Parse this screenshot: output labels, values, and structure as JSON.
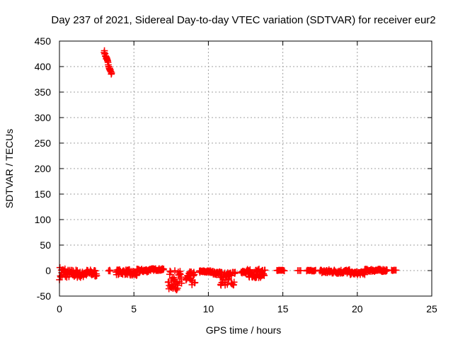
{
  "chart_data": {
    "type": "scatter",
    "title": "Day 237 of 2021, Sidereal Day-to-day VTEC variation (SDTVAR) for receiver eur2",
    "xlabel": "GPS time / hours",
    "ylabel": "SDTVAR / TECUs",
    "xlim": [
      0,
      25
    ],
    "ylim": [
      -50,
      450
    ],
    "xticks": [
      0,
      5,
      10,
      15,
      20,
      25
    ],
    "yticks": [
      -50,
      0,
      50,
      100,
      150,
      200,
      250,
      300,
      350,
      400,
      450
    ],
    "grid": true,
    "marker": "plus",
    "color": "#ff0000",
    "segments": [
      {
        "x_start": 0.0,
        "x_end": 0.4,
        "y": [
          -18,
          8
        ],
        "step": 0.03
      },
      {
        "x_start": 0.4,
        "x_end": 1.2,
        "y": [
          -14,
          2
        ],
        "step": 0.03
      },
      {
        "x_start": 1.2,
        "x_end": 1.6,
        "y": [
          -14,
          -2
        ],
        "step": 0.03
      },
      {
        "x_start": 1.6,
        "x_end": 2.5,
        "y": [
          -12,
          2
        ],
        "step": 0.03
      },
      {
        "x_start": 3.0,
        "x_end": 3.5,
        "y": [
          430,
          385
        ],
        "step": 0.02
      },
      {
        "x_start": 3.3,
        "x_end": 3.4,
        "y": [
          -1,
          1
        ],
        "step": 0.03
      },
      {
        "x_start": 3.8,
        "x_end": 4.7,
        "y": [
          -8,
          2
        ],
        "step": 0.03
      },
      {
        "x_start": 4.7,
        "x_end": 5.2,
        "y": [
          -12,
          0
        ],
        "step": 0.03
      },
      {
        "x_start": 5.2,
        "x_end": 6.0,
        "y": [
          -3,
          3
        ],
        "step": 0.03
      },
      {
        "x_start": 6.0,
        "x_end": 7.0,
        "y": [
          0,
          4
        ],
        "step": 0.03
      },
      {
        "x_start": 7.3,
        "x_end": 8.2,
        "y": [
          -38,
          0
        ],
        "step": 0.025
      },
      {
        "x_start": 8.5,
        "x_end": 9.1,
        "y": [
          -30,
          -2
        ],
        "step": 0.025
      },
      {
        "x_start": 9.4,
        "x_end": 10.3,
        "y": [
          -4,
          0
        ],
        "step": 0.03
      },
      {
        "x_start": 10.3,
        "x_end": 10.9,
        "y": [
          -8,
          -2
        ],
        "step": 0.03
      },
      {
        "x_start": 10.8,
        "x_end": 11.8,
        "y": [
          -30,
          -2
        ],
        "step": 0.025
      },
      {
        "x_start": 12.2,
        "x_end": 12.8,
        "y": [
          -5,
          2
        ],
        "step": 0.03
      },
      {
        "x_start": 12.6,
        "x_end": 13.8,
        "y": [
          -14,
          3
        ],
        "step": 0.025
      },
      {
        "x_start": 14.6,
        "x_end": 15.1,
        "y": [
          -1,
          1
        ],
        "step": 0.06
      },
      {
        "x_start": 16.0,
        "x_end": 16.2,
        "y": [
          0,
          0
        ],
        "step": 0.08
      },
      {
        "x_start": 16.6,
        "x_end": 17.2,
        "y": [
          -1,
          1
        ],
        "step": 0.05
      },
      {
        "x_start": 17.5,
        "x_end": 19.5,
        "y": [
          -6,
          2
        ],
        "step": 0.03
      },
      {
        "x_start": 19.5,
        "x_end": 20.5,
        "y": [
          -8,
          -2
        ],
        "step": 0.03
      },
      {
        "x_start": 20.5,
        "x_end": 22.0,
        "y": [
          -2,
          3
        ],
        "step": 0.03
      },
      {
        "x_start": 22.3,
        "x_end": 22.6,
        "y": [
          0,
          1
        ],
        "step": 0.08
      }
    ]
  }
}
